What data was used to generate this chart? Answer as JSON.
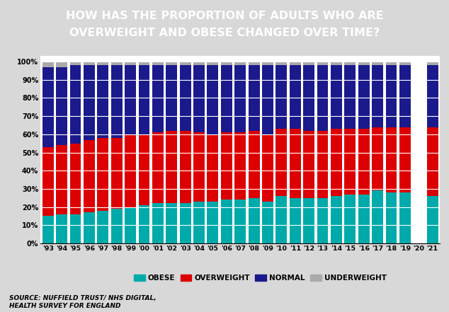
{
  "years": [
    "'93",
    "'94",
    "'95",
    "'96",
    "'97",
    "'98",
    "'99",
    "'00",
    "'01",
    "'02",
    "'03",
    "'04",
    "'05",
    "'06",
    "'07",
    "'08",
    "'09",
    "'10",
    "'11",
    "'12",
    "'13",
    "'14",
    "'15",
    "'16",
    "'17",
    "'18",
    "'19",
    "'20",
    "'21"
  ],
  "obese": [
    15,
    16,
    16,
    17,
    18,
    19,
    20,
    21,
    22,
    22,
    22,
    23,
    23,
    24,
    24,
    25,
    23,
    26,
    25,
    25,
    25,
    26,
    27,
    27,
    29,
    28,
    28,
    0,
    26
  ],
  "overweight": [
    38,
    38,
    39,
    40,
    40,
    39,
    40,
    39,
    39,
    40,
    40,
    38,
    37,
    37,
    37,
    37,
    37,
    37,
    38,
    37,
    37,
    37,
    36,
    36,
    35,
    36,
    36,
    0,
    38
  ],
  "normal": [
    44,
    43,
    43,
    41,
    40,
    40,
    38,
    38,
    37,
    36,
    36,
    37,
    38,
    37,
    37,
    36,
    38,
    35,
    35,
    36,
    36,
    35,
    35,
    35,
    34,
    34,
    34,
    0,
    34
  ],
  "underweight": [
    3,
    3,
    2,
    2,
    2,
    2,
    2,
    2,
    2,
    2,
    2,
    2,
    2,
    2,
    2,
    2,
    2,
    2,
    2,
    2,
    2,
    2,
    2,
    2,
    2,
    2,
    2,
    0,
    2
  ],
  "colors": {
    "obese": "#00aaaa",
    "overweight": "#dd0000",
    "normal": "#1a1a8c",
    "underweight": "#aaaaaa"
  },
  "title_line1": "HOW HAS THE PROPORTION OF ADULTS WHO ARE",
  "title_line2": "OVERWEIGHT AND OBESE CHANGED OVER TIME?",
  "title_bg": "#6b2fa0",
  "source": "SOURCE: NUFFIELD TRUST/ NHS DIGITAL,\nHEALTH SURVEY FOR ENGLAND",
  "ylabel_ticks": [
    "0%",
    "10%",
    "20%",
    "30%",
    "40%",
    "50%",
    "60%",
    "70%",
    "80%",
    "90%",
    "100%"
  ],
  "yticks": [
    0,
    10,
    20,
    30,
    40,
    50,
    60,
    70,
    80,
    90,
    100
  ],
  "chart_bg": "#d8d8d8",
  "plot_bg": "white"
}
